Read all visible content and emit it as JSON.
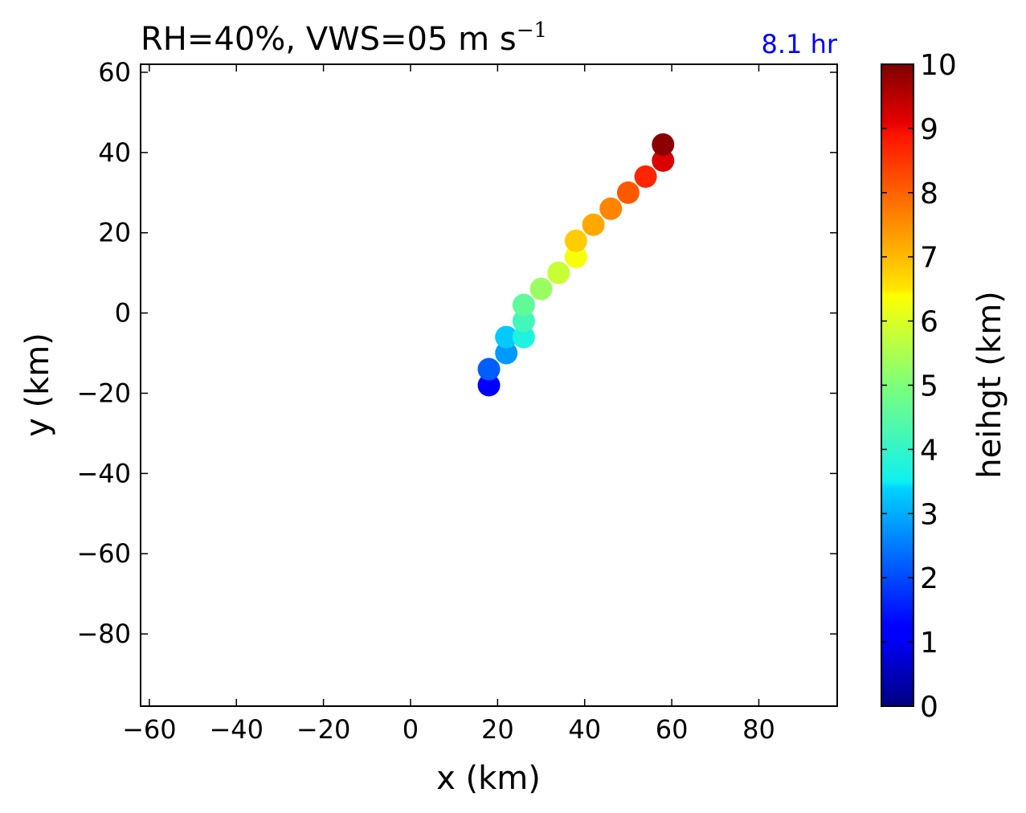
{
  "chart_data": {
    "type": "scatter",
    "title": {
      "main": "RH=40%, VWS=05 m s",
      "superscript": "−1"
    },
    "annotation": {
      "text": "8.1 hr",
      "color": "#0000ff"
    },
    "xlabel": "x (km)",
    "ylabel": "y (km)",
    "xlim": [
      -62,
      98
    ],
    "ylim": [
      -98,
      62
    ],
    "xticks": [
      -60,
      -40,
      -20,
      0,
      20,
      40,
      60,
      80
    ],
    "yticks": [
      60,
      40,
      20,
      0,
      -20,
      -40,
      -60,
      -80
    ],
    "tick_labels": {
      "x": [
        "−60",
        "−40",
        "−20",
        "0",
        "20",
        "40",
        "60",
        "80"
      ],
      "y": [
        "60",
        "40",
        "20",
        "0",
        "−20",
        "−40",
        "−60",
        "−80"
      ]
    },
    "grid": false,
    "colorbar": {
      "label": "heihgt (km)",
      "range": [
        0,
        10
      ],
      "ticks": [
        "0",
        "1",
        "2",
        "3",
        "4",
        "5",
        "6",
        "7",
        "8",
        "9",
        "10"
      ],
      "colormap": "jet"
    },
    "points": [
      {
        "x": 18,
        "y": -18,
        "height": 1.1
      },
      {
        "x": 18,
        "y": -14,
        "height": 2.2
      },
      {
        "x": 22,
        "y": -10,
        "height": 2.8
      },
      {
        "x": 22,
        "y": -6,
        "height": 3.3
      },
      {
        "x": 26,
        "y": -6,
        "height": 3.7
      },
      {
        "x": 26,
        "y": -2,
        "height": 4.2
      },
      {
        "x": 26,
        "y": 2,
        "height": 4.6
      },
      {
        "x": 30,
        "y": 6,
        "height": 5.3
      },
      {
        "x": 34,
        "y": 10,
        "height": 5.8
      },
      {
        "x": 38,
        "y": 14,
        "height": 6.3
      },
      {
        "x": 38,
        "y": 18,
        "height": 6.8
      },
      {
        "x": 42,
        "y": 22,
        "height": 7.2
      },
      {
        "x": 46,
        "y": 26,
        "height": 7.6
      },
      {
        "x": 50,
        "y": 30,
        "height": 8.1
      },
      {
        "x": 54,
        "y": 34,
        "height": 8.7
      },
      {
        "x": 58,
        "y": 38,
        "height": 9.2
      },
      {
        "x": 58,
        "y": 42,
        "height": 9.9
      }
    ]
  }
}
